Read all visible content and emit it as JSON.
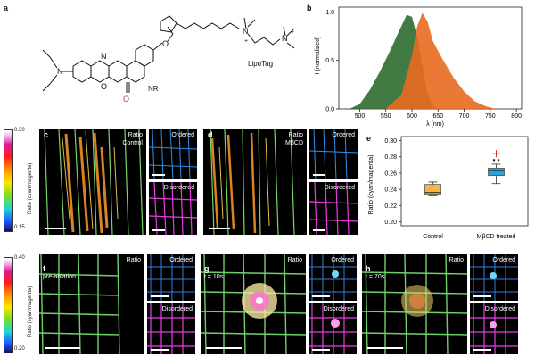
{
  "panels": {
    "a": "a",
    "b": "b",
    "c": "c",
    "d": "d",
    "e": "e",
    "f": "f",
    "g": "g",
    "h": "h"
  },
  "structure": {
    "lipotag_label": "LipoTag",
    "nr_label": "NR",
    "atoms": {
      "n": "N",
      "o": "O",
      "plus": "+"
    }
  },
  "spectrum": {
    "ylabel": "I (normalized)",
    "xlabel": "λ (nm)",
    "xticks": [
      "500",
      "550",
      "600",
      "650",
      "700",
      "750",
      "800"
    ],
    "yticks": [
      "0.0",
      "0.5",
      "1.0"
    ]
  },
  "colorbar_top": {
    "max": "0.30",
    "min": "0.15",
    "label": "Ratio (cyan/magenta)"
  },
  "colorbar_bottom": {
    "max": "0.40",
    "min": "0.20",
    "label": "Ratio (cyan/magenta)"
  },
  "panel_c": {
    "ratio": "Ratio",
    "condition": "Control",
    "ordered": "Ordered",
    "disordered": "Disordered"
  },
  "panel_d": {
    "ratio": "Ratio",
    "condition": "MβCD",
    "ordered": "Ordered",
    "disordered": "Disordered"
  },
  "panel_f": {
    "ratio": "Ratio",
    "time": "pre-ablation",
    "ordered": "Ordered",
    "disordered": "Disordered"
  },
  "panel_g": {
    "ratio": "Ratio",
    "time": "t = 10s",
    "ordered": "Ordered",
    "disordered": "Disordered"
  },
  "panel_h": {
    "ratio": "Ratio",
    "time": "t = 70s",
    "ordered": "Ordered",
    "disordered": "Disordered"
  },
  "chart_data": [
    {
      "type": "area",
      "xlabel": "λ (nm)",
      "ylabel": "I (normalized)",
      "xlim": [
        460,
        810
      ],
      "ylim": [
        0,
        1.05
      ],
      "series": [
        {
          "color": "#2f6a2f",
          "x": [
            480,
            500,
            520,
            540,
            560,
            575,
            590,
            600,
            610,
            620,
            630,
            640,
            650
          ],
          "y": [
            0.0,
            0.05,
            0.2,
            0.4,
            0.62,
            0.8,
            0.97,
            0.95,
            0.75,
            0.45,
            0.15,
            0.03,
            0.0
          ]
        },
        {
          "color": "#e86a1f",
          "x": [
            550,
            580,
            600,
            610,
            620,
            630,
            640,
            660,
            680,
            700,
            720,
            740,
            760
          ],
          "y": [
            0.0,
            0.15,
            0.55,
            0.85,
            0.99,
            0.9,
            0.7,
            0.5,
            0.32,
            0.18,
            0.08,
            0.03,
            0.0
          ]
        }
      ]
    },
    {
      "type": "box",
      "ylabel": "Ratio (cyan/magenta)",
      "ylim": [
        0.195,
        0.305
      ],
      "yticks": [
        "0.20",
        "0.22",
        "0.24",
        "0.26",
        "0.28",
        "0.30"
      ],
      "categories": [
        "Control",
        "MβCD treated"
      ],
      "boxes": [
        {
          "min": 0.232,
          "q1": 0.234,
          "median": 0.236,
          "q3": 0.246,
          "max": 0.249,
          "color": "#f6b642"
        },
        {
          "min": 0.247,
          "q1": 0.257,
          "median": 0.263,
          "q3": 0.266,
          "max": 0.271,
          "color": "#2aa5dc",
          "outliers": [
            0.276
          ],
          "outlier_plus": 0.284
        }
      ]
    }
  ]
}
